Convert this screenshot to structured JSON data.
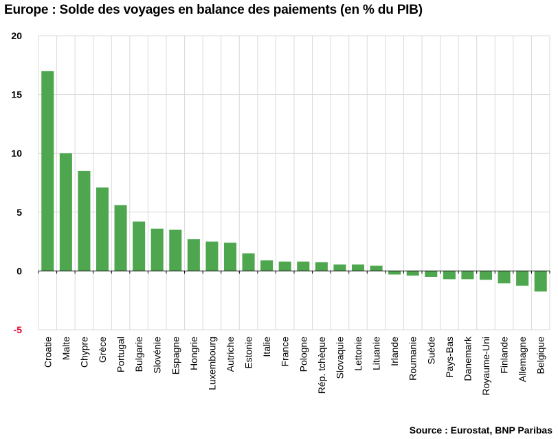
{
  "title": "Europe : Solde des voyages en balance des paiements (en % du PIB)",
  "source": "Source : Eurostat, BNP Paribas",
  "colors": {
    "bar": "#4ea74e",
    "grid": "#d9d9d9",
    "negative_tick": "#e8002b",
    "axis": "#000000"
  },
  "chart_data": {
    "type": "bar",
    "title": "Europe : Solde des voyages en balance des paiements (en % du PIB)",
    "xlabel": "",
    "ylabel": "",
    "ylim": [
      -5,
      20
    ],
    "yticks": [
      -5,
      0,
      5,
      10,
      15,
      20
    ],
    "grid": true,
    "categories": [
      "Croatie",
      "Malte",
      "Chypre",
      "Grèce",
      "Portugal",
      "Bulgarie",
      "Slovénie",
      "Espagne",
      "Hongrie",
      "Luxembourg",
      "Autriche",
      "Estonie",
      "Italie",
      "France",
      "Pologne",
      "Rép. tchèque",
      "Slovaquie",
      "Lettonie",
      "Lituanie",
      "Irlande",
      "Roumanie",
      "Suède",
      "Pays-Bas",
      "Danemark",
      "Royaume-Uni",
      "Finlande",
      "Allemagne",
      "Belgique"
    ],
    "values": [
      17.0,
      10.0,
      8.5,
      7.1,
      5.6,
      4.2,
      3.6,
      3.5,
      2.7,
      2.5,
      2.4,
      1.5,
      0.9,
      0.8,
      0.8,
      0.75,
      0.55,
      0.55,
      0.45,
      -0.3,
      -0.4,
      -0.5,
      -0.7,
      -0.7,
      -0.75,
      -1.05,
      -1.25,
      -1.75
    ]
  }
}
